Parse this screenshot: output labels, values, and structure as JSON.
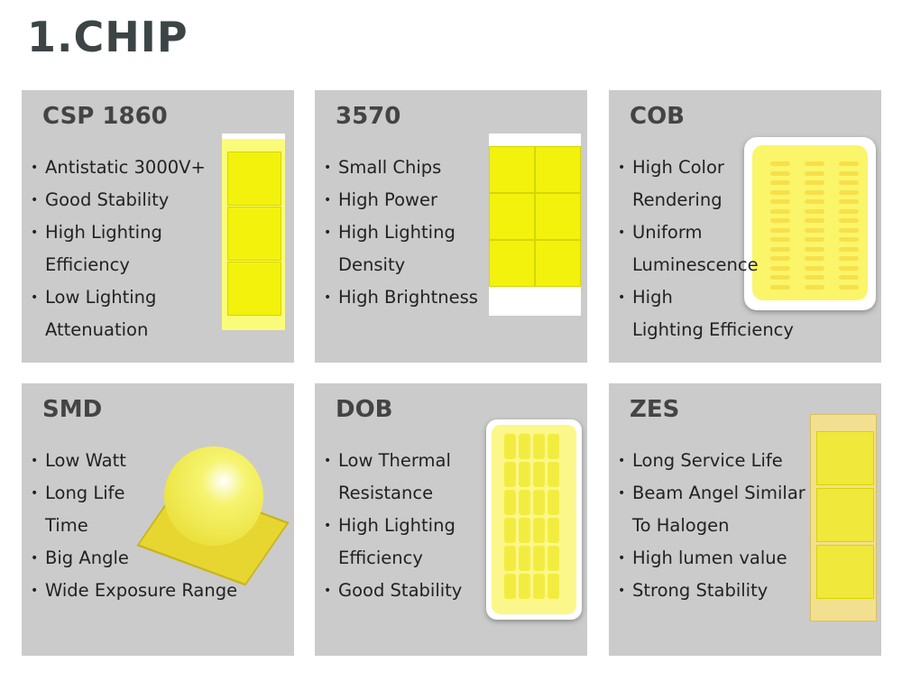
{
  "heading": "1.CHIP",
  "panels": [
    {
      "title": "CSP 1860",
      "lines": [
        "Antistatic 3000V+",
        "Good Stability",
        "High Lighting",
        "Efficiency",
        "Low Lighting",
        "Attenuation"
      ]
    },
    {
      "title": "3570",
      "lines": [
        "Small Chips",
        "High Power",
        "High Lighting",
        "Density",
        "High Brightness"
      ]
    },
    {
      "title": "COB",
      "lines": [
        "High Color",
        "Rendering",
        "Uniform",
        "Luminescence",
        "High",
        "Lighting Efficiency"
      ]
    },
    {
      "title": "SMD",
      "lines": [
        "Low Watt",
        "Long Life",
        "Time",
        "Big Angle",
        "Wide Exposure Range"
      ]
    },
    {
      "title": "DOB",
      "lines": [
        "Low Thermal",
        "Resistance",
        "High Lighting",
        "Efficiency",
        "Good Stability"
      ]
    },
    {
      "title": "ZES",
      "lines": [
        "Long Service Life",
        "Beam Angel Similar",
        "To Halogen",
        "High lumen value",
        "Strong Stability"
      ]
    }
  ],
  "colors": {
    "panel": "#cbcbcb",
    "chip": "#f2f20c"
  }
}
